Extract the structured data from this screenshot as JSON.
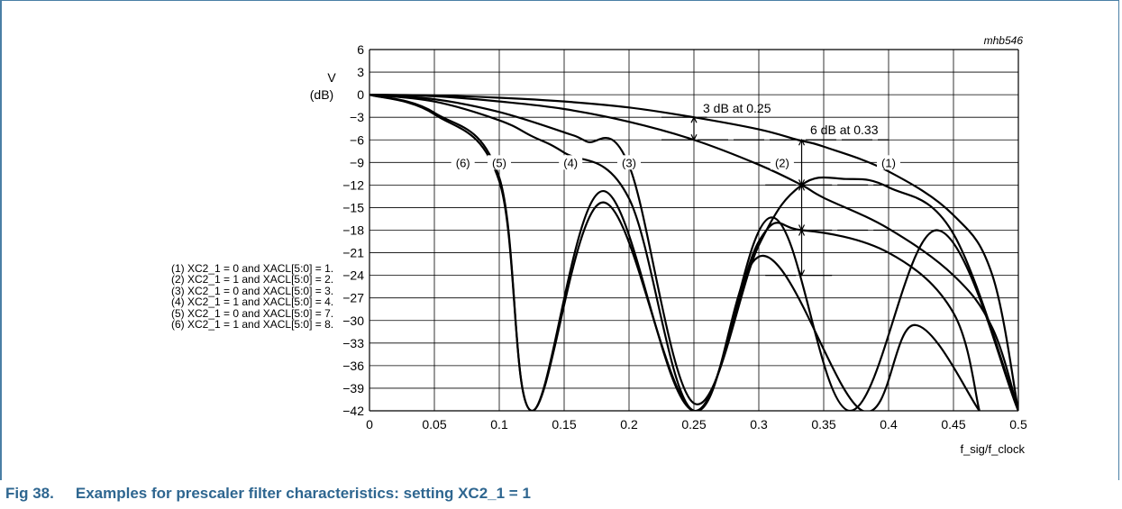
{
  "figure": {
    "number": "Fig 38.",
    "title": "Examples for prescaler filter characteristics: setting XC2_1 = 1",
    "id_tag": "mhb546"
  },
  "legend": [
    "(1) XC2_1 = 0 and XACL[5:0] = 1.",
    "(2) XC2_1 = 1 and XACL[5:0] = 2.",
    "(3) XC2_1 = 0 and XACL[5:0] = 3.",
    "(4) XC2_1 = 1 and XACL[5:0] = 4.",
    "(5) XC2_1 = 0 and XACL[5:0] = 7.",
    "(6) XC2_1 = 1 and XACL[5:0] = 8."
  ],
  "chart_data": {
    "type": "line",
    "ylabel_line1": "V",
    "ylabel_line2": "(dB)",
    "xlabel": "f_sig/f_clock",
    "xlim": [
      0,
      0.5
    ],
    "ylim": [
      -42,
      6
    ],
    "grid": true,
    "x_ticks": [
      "0",
      "0.05",
      "0.1",
      "0.15",
      "0.2",
      "0.25",
      "0.3",
      "0.35",
      "0.4",
      "0.45",
      "0.5"
    ],
    "y_ticks": [
      "6",
      "3",
      "0",
      "−3",
      "−6",
      "−9",
      "−12",
      "−15",
      "−18",
      "−21",
      "−24",
      "−27",
      "−30",
      "−33",
      "−36",
      "−39",
      "−42"
    ],
    "curve_labels": [
      "(6)",
      "(5)",
      "(4)",
      "(3)",
      "(2)",
      "(1)"
    ],
    "annotations": [
      "3 dB at 0.25",
      "6 dB at 0.33"
    ],
    "series": [
      {
        "name": "(1)",
        "x": [
          0,
          0.05,
          0.1,
          0.15,
          0.2,
          0.25,
          0.3,
          0.33,
          0.35,
          0.4,
          0.45,
          0.48,
          0.5
        ],
        "y": [
          0,
          -0.1,
          -0.4,
          -0.9,
          -1.7,
          -3,
          -4.6,
          -6,
          -6.9,
          -10.2,
          -16,
          -24,
          -42
        ]
      },
      {
        "name": "(2)",
        "x": [
          0,
          0.05,
          0.1,
          0.15,
          0.2,
          0.25,
          0.3,
          0.333,
          0.35,
          0.4,
          0.45,
          0.48,
          0.5
        ],
        "y": [
          0,
          -0.2,
          -0.9,
          -1.9,
          -3.6,
          -6,
          -9.3,
          -12,
          -13.7,
          -17.8,
          -24,
          -31,
          -42
        ]
      },
      {
        "name": "(3)",
        "x": [
          0,
          0.05,
          0.1,
          0.15,
          0.167,
          0.2,
          0.25,
          0.3,
          0.333,
          0.367,
          0.4,
          0.45,
          0.5
        ],
        "y": [
          0,
          -0.6,
          -2.3,
          -5,
          -6.2,
          -9.4,
          -41,
          -20,
          -12,
          -11.2,
          -12.3,
          -18.5,
          -42
        ]
      },
      {
        "name": "(4)",
        "x": [
          0,
          0.05,
          0.1,
          0.125,
          0.15,
          0.2,
          0.25,
          0.3,
          0.333,
          0.4,
          0.45,
          0.47
        ],
        "y": [
          0,
          -0.9,
          -3.4,
          -5.5,
          -7.7,
          -13.8,
          -42,
          -19.5,
          -18,
          -21,
          -29,
          -42
        ]
      },
      {
        "name": "(5)",
        "x": [
          0,
          0.05,
          0.1,
          0.125,
          0.18,
          0.25,
          0.31,
          0.37,
          0.437,
          0.5
        ],
        "y": [
          0,
          -2.4,
          -11,
          -42,
          -12.8,
          -42,
          -16.3,
          -42,
          -18,
          -42
        ]
      },
      {
        "name": "(6)",
        "x": [
          0,
          0.05,
          0.1,
          0.125,
          0.18,
          0.25,
          0.303,
          0.38,
          0.42,
          0.47
        ],
        "y": [
          0,
          -2.6,
          -11.5,
          -42,
          -14.3,
          -42,
          -21.4,
          -42,
          -30.6,
          -42
        ]
      }
    ]
  }
}
